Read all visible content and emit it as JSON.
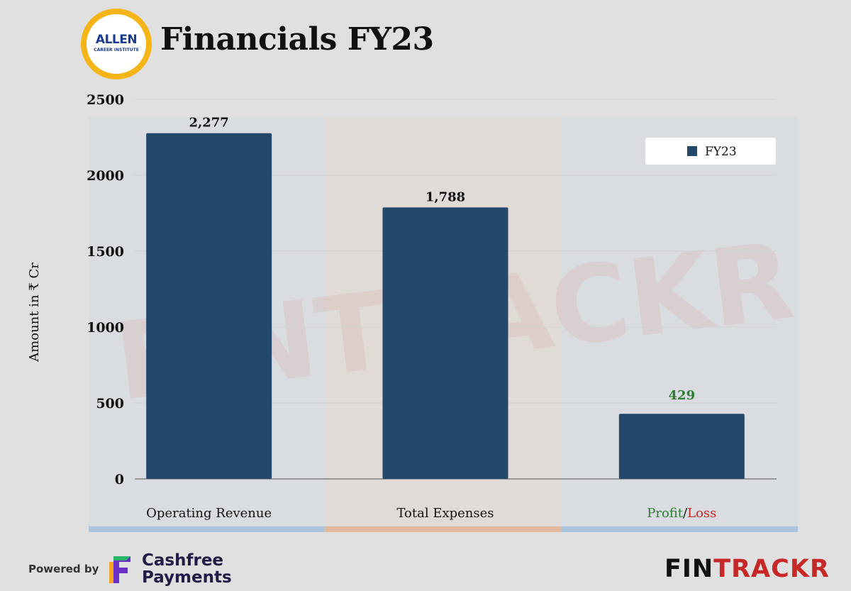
{
  "header": {
    "logo_brand": "ALLEN",
    "logo_sub": "CAREER INSTITUTE",
    "title": "Financials FY23"
  },
  "chart_data": {
    "type": "bar",
    "categories": [
      "Operating Revenue",
      "Total Expenses",
      "Profit/Loss"
    ],
    "series": [
      {
        "name": "FY23",
        "values": [
          2277,
          1788,
          429
        ]
      }
    ],
    "value_labels": [
      "2,277",
      "1,788",
      "429"
    ],
    "ylabel": "Amount in ₹ Cr",
    "ylim": [
      0,
      2500
    ],
    "yticks": [
      0,
      500,
      1000,
      1500,
      2000,
      2500
    ],
    "grid": true,
    "legend_position": "top-right",
    "category_label_parts": [
      [
        {
          "text": "Operating Revenue",
          "color": "#111111"
        }
      ],
      [
        {
          "text": "Total Expenses",
          "color": "#111111"
        }
      ],
      [
        {
          "text": "Profit",
          "color": "#2e7d32"
        },
        {
          "text": "/",
          "color": "#111111"
        },
        {
          "text": "Loss",
          "color": "#c62828"
        }
      ]
    ],
    "colors": {
      "bar": "#24476c",
      "profit_label": "#2e7d32",
      "loss_label": "#c62828",
      "band_revenue": "#a9c3dd",
      "band_expenses": "#e2b99c",
      "band_profit": "#a9c3dd"
    }
  },
  "watermark": "FINTRACKR",
  "footer": {
    "powered_by": "Powered by",
    "sponsor_line1": "Cashfree",
    "sponsor_line2": "Payments",
    "brand_part1": "FIN",
    "brand_part2": "TRACKR"
  }
}
